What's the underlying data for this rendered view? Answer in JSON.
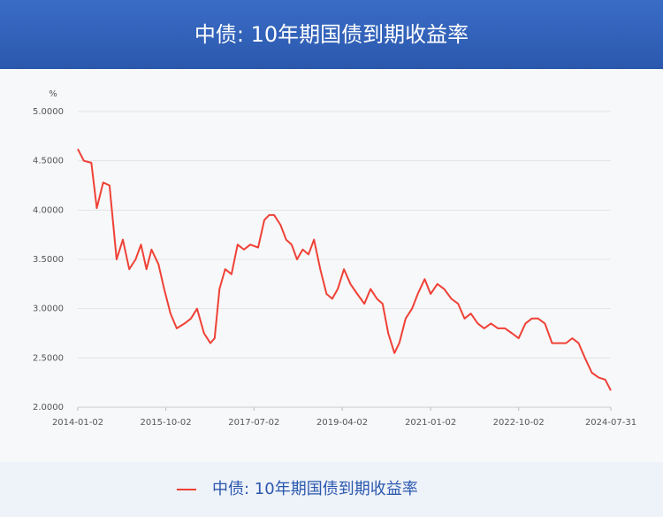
{
  "chart_data": {
    "type": "line",
    "title": "中债: 10年期国债到期收益率",
    "y_unit": "%",
    "xlim": [
      "2014-01-02",
      "2024-07-31"
    ],
    "xticks": [
      "2014-01-02",
      "2015-10-02",
      "2017-07-02",
      "2019-04-02",
      "2021-01-02",
      "2022-10-02",
      "2024-07-31"
    ],
    "ylim": [
      2,
      5
    ],
    "yticks": [
      {
        "value": 2,
        "label": "2.0000"
      },
      {
        "value": 2.5,
        "label": "2.5000"
      },
      {
        "value": 3,
        "label": "3.0000"
      },
      {
        "value": 3.5,
        "label": "3.5000"
      },
      {
        "value": 4,
        "label": "4.0000"
      },
      {
        "value": 4.5,
        "label": "4.5000"
      },
      {
        "value": 5,
        "label": "5.0000"
      }
    ],
    "grid": true,
    "legend": "bottom",
    "x": [
      "2014-01-02",
      "2014-02-15",
      "2014-04-10",
      "2014-05-20",
      "2014-07-05",
      "2014-08-20",
      "2014-10-10",
      "2014-11-25",
      "2015-01-10",
      "2015-02-25",
      "2015-04-05",
      "2015-05-15",
      "2015-06-20",
      "2015-08-10",
      "2015-09-20",
      "2015-11-05",
      "2015-12-20",
      "2016-02-15",
      "2016-04-01",
      "2016-05-15",
      "2016-07-05",
      "2016-08-20",
      "2016-09-20",
      "2016-10-25",
      "2016-12-05",
      "2017-01-20",
      "2017-03-05",
      "2017-04-20",
      "2017-06-05",
      "2017-08-01",
      "2017-09-15",
      "2017-10-20",
      "2017-11-25",
      "2018-01-10",
      "2018-02-20",
      "2018-04-01",
      "2018-05-10",
      "2018-06-20",
      "2018-08-01",
      "2018-09-10",
      "2018-10-25",
      "2018-12-10",
      "2019-01-20",
      "2019-03-01",
      "2019-04-15",
      "2019-06-01",
      "2019-07-20",
      "2019-09-10",
      "2019-10-25",
      "2019-12-10",
      "2020-01-20",
      "2020-03-01",
      "2020-04-15",
      "2020-05-20",
      "2020-07-05",
      "2020-08-20",
      "2020-10-01",
      "2020-11-20",
      "2021-01-02",
      "2021-02-20",
      "2021-04-10",
      "2021-06-01",
      "2021-07-20",
      "2021-09-05",
      "2021-10-20",
      "2021-12-10",
      "2022-01-25",
      "2022-03-15",
      "2022-05-05",
      "2022-06-25",
      "2022-08-15",
      "2022-10-02",
      "2022-11-20",
      "2023-01-05",
      "2023-02-20",
      "2023-04-10",
      "2023-06-01",
      "2023-07-20",
      "2023-09-10",
      "2023-10-25",
      "2023-12-10",
      "2024-01-25",
      "2024-03-15",
      "2024-05-05",
      "2024-06-20",
      "2024-07-31"
    ],
    "series": [
      {
        "name": "中债: 10年期国债到期收益率",
        "color": "#ef4136",
        "values": [
          4.62,
          4.5,
          4.48,
          4.02,
          4.28,
          4.25,
          3.5,
          3.7,
          3.4,
          3.5,
          3.65,
          3.4,
          3.6,
          3.45,
          3.2,
          2.95,
          2.8,
          2.85,
          2.9,
          3.0,
          2.75,
          2.65,
          2.7,
          3.2,
          3.4,
          3.35,
          3.65,
          3.6,
          3.65,
          3.62,
          3.9,
          3.95,
          3.95,
          3.85,
          3.7,
          3.65,
          3.5,
          3.6,
          3.55,
          3.7,
          3.4,
          3.15,
          3.1,
          3.2,
          3.4,
          3.25,
          3.15,
          3.05,
          3.2,
          3.1,
          3.05,
          2.75,
          2.55,
          2.65,
          2.9,
          3.0,
          3.15,
          3.3,
          3.15,
          3.25,
          3.2,
          3.1,
          3.05,
          2.9,
          2.95,
          2.85,
          2.8,
          2.85,
          2.8,
          2.8,
          2.75,
          2.7,
          2.85,
          2.9,
          2.9,
          2.85,
          2.65,
          2.65,
          2.65,
          2.7,
          2.65,
          2.5,
          2.35,
          2.3,
          2.28,
          2.17
        ]
      }
    ]
  }
}
